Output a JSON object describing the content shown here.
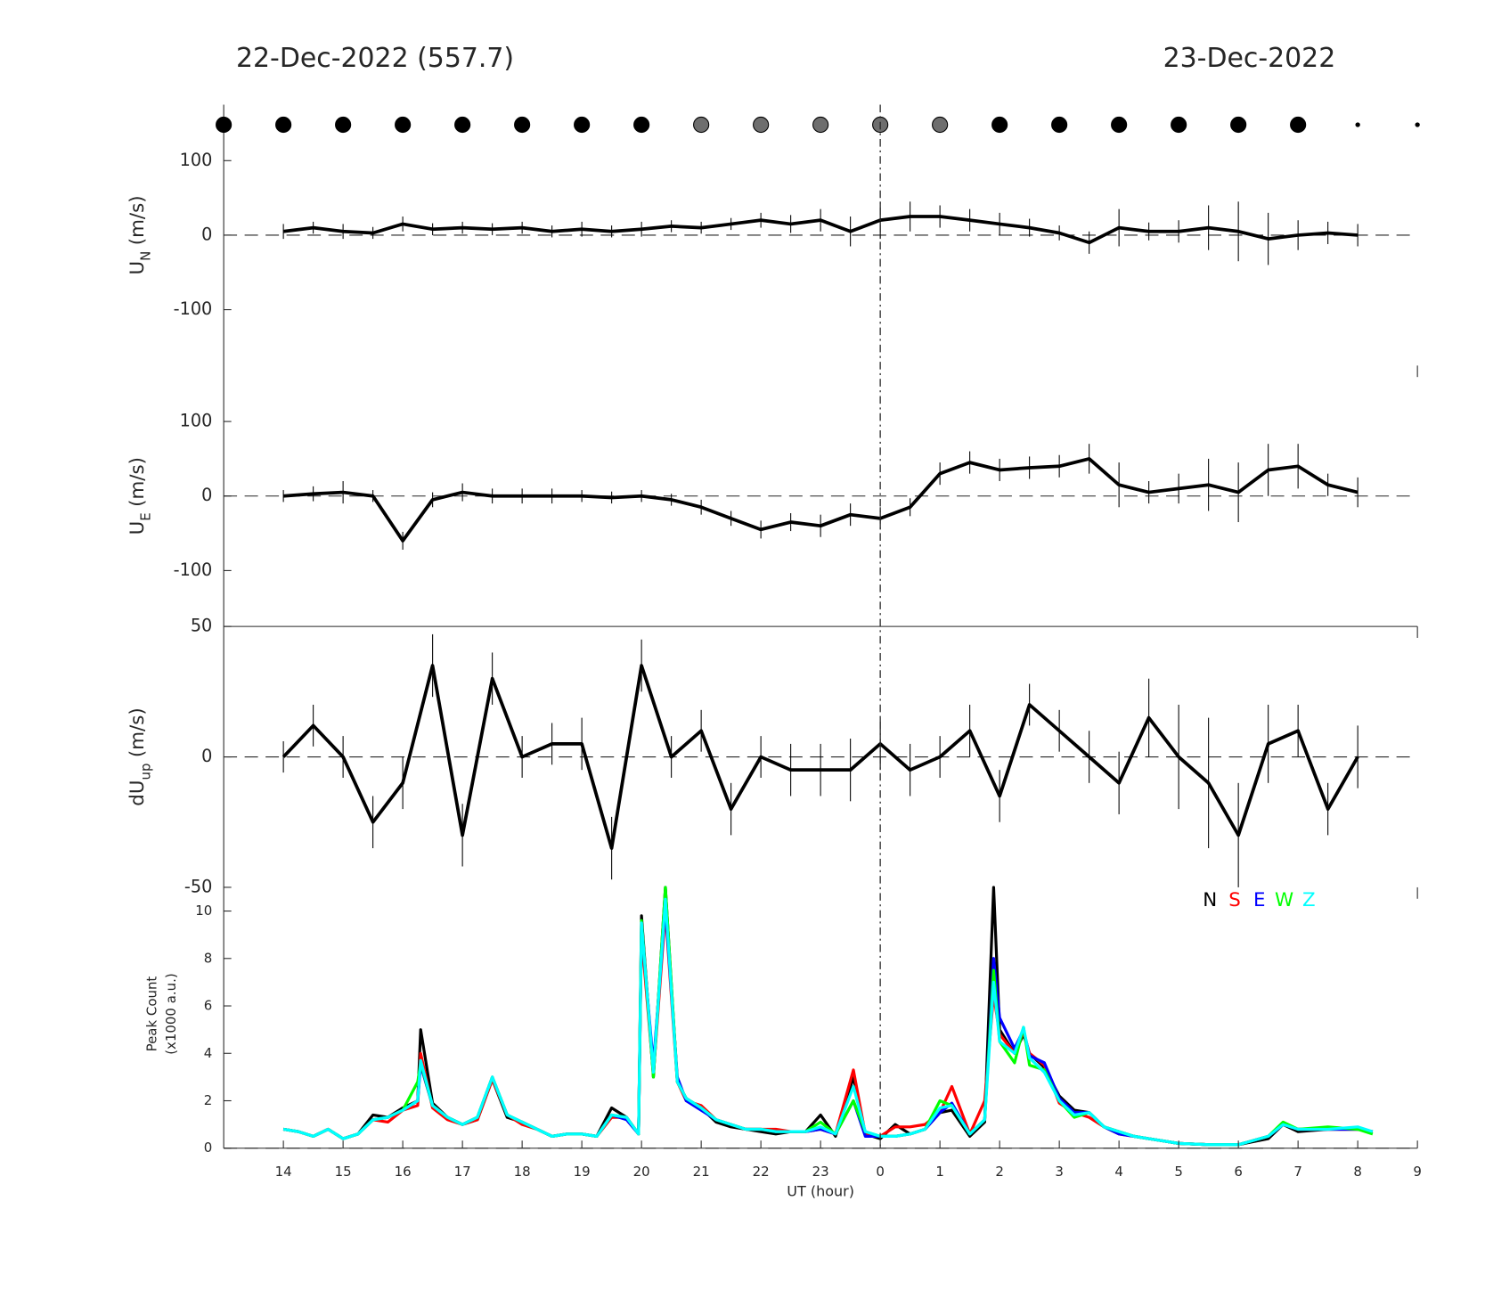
{
  "header": {
    "left": "22-Dec-2022 (557.7)",
    "right": "23-Dec-2022"
  },
  "chart_data": [
    {
      "type": "line",
      "ylabel": {
        "base": "U",
        "sub": "N",
        "unit": "(m/s)"
      },
      "ylim": [
        -175,
        175
      ],
      "yticks": [
        -100,
        0,
        100
      ],
      "color": "#000000",
      "markers": {
        "x": [
          13,
          14,
          15,
          16,
          17,
          18,
          19,
          20,
          21,
          22,
          23,
          24,
          25,
          26,
          27,
          28,
          29,
          30,
          31,
          32,
          33
        ],
        "colors": [
          "#000000",
          "#000000",
          "#000000",
          "#000000",
          "#000000",
          "#000000",
          "#000000",
          "#000000",
          "#6e6e6e",
          "#6e6e6e",
          "#6e6e6e",
          "#6e6e6e",
          "#6e6e6e",
          "#000000",
          "#000000",
          "#000000",
          "#000000",
          "#000000",
          "#000000",
          "#000000",
          "#000000"
        ],
        "sizes": [
          "large",
          "large",
          "large",
          "large",
          "large",
          "large",
          "large",
          "large",
          "large",
          "large",
          "large",
          "large",
          "large",
          "large",
          "large",
          "large",
          "large",
          "large",
          "large",
          "small",
          "small"
        ]
      },
      "x": [
        14,
        14.5,
        15,
        15.5,
        16,
        16.5,
        17,
        17.5,
        18,
        18.5,
        19,
        19.5,
        20,
        20.5,
        21,
        21.5,
        22,
        22.5,
        23,
        23.5,
        24,
        24.5,
        25,
        25.5,
        26,
        26.5,
        27,
        27.5,
        28,
        28.5,
        29,
        29.5,
        30,
        30.5,
        31,
        31.5,
        32
      ],
      "values": [
        5,
        10,
        5,
        3,
        15,
        8,
        10,
        8,
        10,
        5,
        8,
        5,
        8,
        12,
        10,
        15,
        20,
        15,
        20,
        5,
        20,
        25,
        25,
        20,
        15,
        10,
        3,
        -10,
        10,
        5,
        5,
        10,
        5,
        -5,
        0,
        3,
        0
      ],
      "errors": [
        10,
        8,
        10,
        8,
        10,
        8,
        8,
        8,
        8,
        8,
        10,
        8,
        10,
        8,
        8,
        8,
        10,
        12,
        15,
        20,
        25,
        20,
        15,
        15,
        15,
        12,
        10,
        15,
        25,
        12,
        15,
        30,
        40,
        35,
        20,
        15,
        15
      ]
    },
    {
      "type": "line",
      "ylabel": {
        "base": "U",
        "sub": "E",
        "unit": "(m/s)"
      },
      "ylim": [
        -175,
        175
      ],
      "yticks": [
        -100,
        0,
        100
      ],
      "color": "#000000",
      "x": [
        14,
        14.5,
        15,
        15.5,
        16,
        16.5,
        17,
        17.5,
        18,
        18.5,
        19,
        19.5,
        20,
        20.5,
        21,
        21.5,
        22,
        22.5,
        23,
        23.5,
        24,
        24.5,
        25,
        25.5,
        26,
        26.5,
        27,
        27.5,
        28,
        28.5,
        29,
        29.5,
        30,
        30.5,
        31,
        31.5,
        32
      ],
      "values": [
        0,
        3,
        5,
        0,
        -60,
        -5,
        5,
        0,
        0,
        0,
        0,
        -2,
        0,
        -5,
        -15,
        -30,
        -45,
        -35,
        -40,
        -25,
        -30,
        -15,
        30,
        45,
        35,
        38,
        40,
        50,
        15,
        5,
        10,
        15,
        5,
        35,
        40,
        15,
        5
      ],
      "errors": [
        8,
        10,
        15,
        8,
        12,
        10,
        12,
        10,
        10,
        10,
        8,
        8,
        8,
        8,
        10,
        10,
        12,
        12,
        15,
        15,
        15,
        12,
        15,
        15,
        15,
        15,
        15,
        20,
        30,
        15,
        20,
        35,
        40,
        35,
        30,
        15,
        20
      ]
    },
    {
      "type": "line",
      "ylabel": {
        "base": "dU",
        "sub": "up",
        "unit": "(m/s)"
      },
      "ylim": [
        -50,
        50
      ],
      "yticks": [
        -50,
        0,
        50
      ],
      "color": "#000000",
      "x": [
        14,
        14.5,
        15,
        15.5,
        16,
        16.5,
        17,
        17.5,
        18,
        18.5,
        19,
        19.5,
        20,
        20.5,
        21,
        21.5,
        22,
        22.5,
        23,
        23.5,
        24,
        24.5,
        25,
        25.5,
        26,
        26.5,
        27,
        27.5,
        28,
        28.5,
        29,
        29.5,
        30,
        30.5,
        31,
        31.5,
        32
      ],
      "values": [
        0,
        12,
        0,
        -25,
        -10,
        35,
        -30,
        30,
        0,
        5,
        5,
        -35,
        35,
        0,
        10,
        -20,
        0,
        -5,
        -5,
        -5,
        5,
        -5,
        0,
        10,
        -15,
        20,
        10,
        0,
        -10,
        15,
        0,
        -10,
        -30,
        5,
        10,
        -20,
        0
      ],
      "errors": [
        6,
        8,
        8,
        10,
        10,
        12,
        12,
        10,
        8,
        8,
        10,
        12,
        10,
        8,
        8,
        10,
        8,
        10,
        10,
        12,
        10,
        10,
        8,
        10,
        10,
        8,
        8,
        10,
        12,
        15,
        20,
        25,
        20,
        15,
        10,
        10,
        12
      ]
    },
    {
      "type": "line",
      "ylabel": [
        "Peak Count",
        "(x1000 a.u.)"
      ],
      "ylim": [
        0,
        11
      ],
      "yticks": [
        0,
        2,
        4,
        6,
        8,
        10
      ],
      "xlabel": "UT (hour)",
      "xlim": [
        13,
        33
      ],
      "xticks": [
        14,
        15,
        16,
        17,
        18,
        19,
        20,
        21,
        22,
        23,
        {
          "value": 24,
          "label": "0"
        },
        {
          "value": 25,
          "label": "1"
        },
        {
          "value": 26,
          "label": "2"
        },
        {
          "value": 27,
          "label": "3"
        },
        {
          "value": 28,
          "label": "4"
        },
        {
          "value": 29,
          "label": "5"
        },
        {
          "value": 30,
          "label": "6"
        },
        {
          "value": 31,
          "label": "7"
        },
        {
          "value": 32,
          "label": "8"
        },
        {
          "value": 33,
          "label": "9"
        }
      ],
      "x": [
        14,
        14.25,
        14.5,
        14.75,
        15,
        15.25,
        15.5,
        15.75,
        16,
        16.25,
        16.3,
        16.5,
        16.75,
        17,
        17.25,
        17.5,
        17.75,
        18,
        18.25,
        18.5,
        18.75,
        19,
        19.25,
        19.5,
        19.75,
        19.95,
        20,
        20.2,
        20.4,
        20.6,
        20.75,
        21,
        21.25,
        21.5,
        21.75,
        22,
        22.25,
        22.5,
        22.75,
        23,
        23.25,
        23.55,
        23.75,
        24,
        24.25,
        24.5,
        24.75,
        25,
        25.2,
        25.5,
        25.75,
        25.9,
        26,
        26.25,
        26.4,
        26.5,
        26.75,
        27,
        27.25,
        27.5,
        27.75,
        28,
        28.25,
        28.5,
        28.75,
        29,
        29.5,
        30,
        30.5,
        30.75,
        31,
        31.5,
        32,
        32.25
      ],
      "series": [
        {
          "name": "N",
          "color": "#000000",
          "values": [
            0.8,
            0.7,
            0.5,
            0.8,
            0.4,
            0.6,
            1.4,
            1.3,
            1.7,
            2.0,
            5.0,
            1.9,
            1.3,
            1.0,
            1.2,
            2.9,
            1.3,
            1.1,
            0.8,
            0.5,
            0.6,
            0.6,
            0.5,
            1.7,
            1.3,
            0.6,
            9.8,
            3.0,
            11,
            2.8,
            2.1,
            1.7,
            1.1,
            0.9,
            0.8,
            0.7,
            0.6,
            0.7,
            0.7,
            1.4,
            0.5,
            3.0,
            0.6,
            0.4,
            1.0,
            0.6,
            0.8,
            1.5,
            1.6,
            0.5,
            1.1,
            11,
            5.0,
            4.0,
            4.8,
            4.0,
            3.4,
            2.2,
            1.6,
            1.5,
            0.9,
            0.7,
            0.5,
            0.4,
            0.3,
            0.2,
            0.15,
            0.15,
            0.4,
            1.0,
            0.7,
            0.8,
            0.8,
            0.7
          ]
        },
        {
          "name": "S",
          "color": "#ff0000",
          "values": [
            0.8,
            0.7,
            0.5,
            0.8,
            0.4,
            0.6,
            1.2,
            1.1,
            1.6,
            1.8,
            4.0,
            1.7,
            1.2,
            1.0,
            1.2,
            2.9,
            1.4,
            1.0,
            0.8,
            0.5,
            0.6,
            0.6,
            0.5,
            1.3,
            1.3,
            0.6,
            9.0,
            3.1,
            10,
            2.8,
            2.0,
            1.8,
            1.2,
            1.0,
            0.8,
            0.8,
            0.8,
            0.7,
            0.7,
            0.8,
            0.6,
            3.3,
            0.6,
            0.5,
            0.9,
            0.9,
            1.0,
            1.5,
            2.6,
            0.6,
            2.0,
            6.5,
            4.8,
            4.0,
            4.9,
            4.0,
            3.5,
            1.9,
            1.5,
            1.3,
            0.9,
            0.6,
            0.5,
            0.4,
            0.3,
            0.2,
            0.15,
            0.15,
            0.5,
            1.0,
            0.8,
            0.8,
            0.8,
            0.7
          ]
        },
        {
          "name": "E",
          "color": "#0000ff",
          "values": [
            0.8,
            0.7,
            0.5,
            0.8,
            0.4,
            0.6,
            1.2,
            1.3,
            1.6,
            2.0,
            3.5,
            1.8,
            1.3,
            1.0,
            1.3,
            3.0,
            1.4,
            1.1,
            0.8,
            0.5,
            0.6,
            0.6,
            0.5,
            1.4,
            1.2,
            0.6,
            9.3,
            3.5,
            10.2,
            3.0,
            2.0,
            1.6,
            1.2,
            1.0,
            0.8,
            0.8,
            0.7,
            0.7,
            0.7,
            0.8,
            0.6,
            2.0,
            0.5,
            0.5,
            0.5,
            0.6,
            0.8,
            1.5,
            1.9,
            0.6,
            1.2,
            8.0,
            5.5,
            4.2,
            5.0,
            3.9,
            3.6,
            2.1,
            1.5,
            1.5,
            0.9,
            0.6,
            0.5,
            0.4,
            0.3,
            0.2,
            0.15,
            0.15,
            0.5,
            1.0,
            0.8,
            0.8,
            0.8,
            0.7
          ]
        },
        {
          "name": "W",
          "color": "#00ff00",
          "values": [
            0.8,
            0.7,
            0.5,
            0.8,
            0.4,
            0.6,
            1.2,
            1.3,
            1.6,
            2.8,
            3.6,
            1.8,
            1.3,
            1.0,
            1.3,
            3.0,
            1.4,
            1.1,
            0.8,
            0.5,
            0.6,
            0.6,
            0.5,
            1.4,
            1.3,
            0.6,
            9.6,
            3.0,
            11,
            2.8,
            2.1,
            1.7,
            1.2,
            1.0,
            0.8,
            0.8,
            0.7,
            0.7,
            0.7,
            1.1,
            0.6,
            2.0,
            0.7,
            0.5,
            0.5,
            0.6,
            0.8,
            2.0,
            1.8,
            0.6,
            1.2,
            7.5,
            4.5,
            3.6,
            5.1,
            3.5,
            3.3,
            2.0,
            1.3,
            1.5,
            0.9,
            0.7,
            0.5,
            0.4,
            0.3,
            0.2,
            0.15,
            0.15,
            0.5,
            1.1,
            0.8,
            0.9,
            0.8,
            0.6
          ]
        },
        {
          "name": "Z",
          "color": "#00ffff",
          "values": [
            0.8,
            0.7,
            0.5,
            0.8,
            0.4,
            0.6,
            1.2,
            1.3,
            1.6,
            2.0,
            3.7,
            1.8,
            1.3,
            1.0,
            1.3,
            3.0,
            1.4,
            1.1,
            0.8,
            0.5,
            0.6,
            0.6,
            0.5,
            1.4,
            1.3,
            0.6,
            9.5,
            3.2,
            10.5,
            2.8,
            2.1,
            1.7,
            1.2,
            1.0,
            0.8,
            0.8,
            0.7,
            0.7,
            0.7,
            0.9,
            0.6,
            2.6,
            0.7,
            0.5,
            0.5,
            0.6,
            0.8,
            1.7,
            1.8,
            0.6,
            1.2,
            7.0,
            4.5,
            4.0,
            5.1,
            3.8,
            3.2,
            2.0,
            1.4,
            1.5,
            0.9,
            0.7,
            0.5,
            0.4,
            0.3,
            0.2,
            0.15,
            0.15,
            0.5,
            1.0,
            0.8,
            0.8,
            0.9,
            0.7
          ]
        }
      ]
    }
  ]
}
